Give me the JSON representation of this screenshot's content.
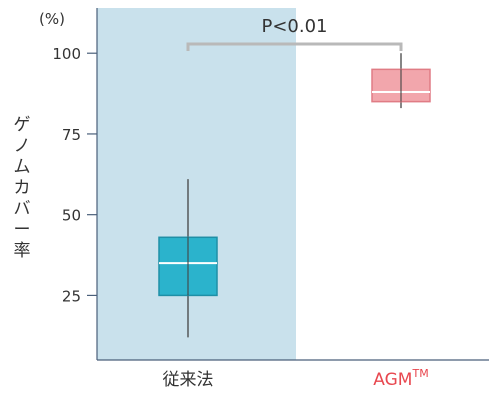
{
  "chart_data": {
    "type": "box",
    "unit_label": "(%)",
    "ylabel": "ゲノムカバー率",
    "y_ticks": [
      25,
      50,
      75,
      100
    ],
    "ylim": [
      5,
      114
    ],
    "categories": [
      "従来法",
      "AGM™"
    ],
    "category_label_parts": [
      {
        "text": "従来法",
        "sup": ""
      },
      {
        "text": "AGM",
        "sup": "TM"
      }
    ],
    "boxes": [
      {
        "category": "従来法",
        "whisker_low": 12,
        "q1": 25,
        "median": 35,
        "q3": 43,
        "whisker_high": 61
      },
      {
        "category": "AGM™",
        "whisker_low": 83,
        "q1": 85,
        "median": 88,
        "q3": 95,
        "whisker_high": 100
      }
    ],
    "annotation": {
      "text": "P<0.01"
    },
    "colors": {
      "background_band": "#c9e1ec",
      "box_conventional": "#2bb3cc",
      "box_conventional_edge": "#1f8fa6",
      "box_agm": "#f2a6ac",
      "box_agm_edge": "#e07c85",
      "agm_label": "#e8474f",
      "axis": "#4a5f7a",
      "whisker": "#444444",
      "bracket": "#b9b9b9",
      "text": "#333333"
    }
  }
}
